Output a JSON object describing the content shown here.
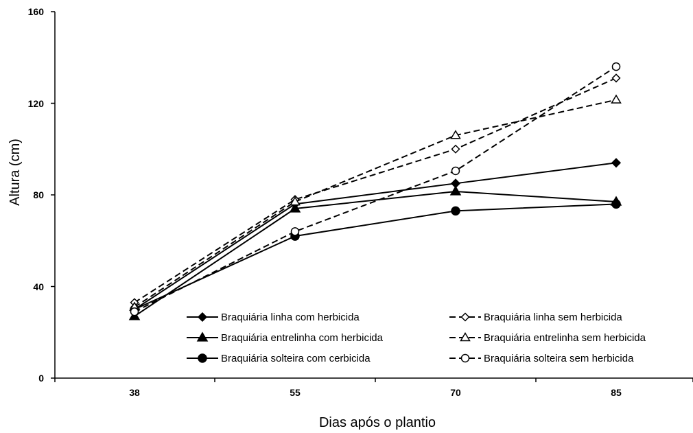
{
  "chart_data": {
    "type": "line",
    "xlabel": "Dias após o plantio",
    "ylabel": "Altura (cm)",
    "x": [
      38,
      55,
      70,
      85
    ],
    "ylim": [
      0,
      160
    ],
    "yticks": [
      0,
      40,
      80,
      120,
      160
    ],
    "grid": false,
    "legend_position": "bottom-right",
    "series": [
      {
        "name": "Braquiária linha com herbicida",
        "marker": "diamond",
        "filled": true,
        "dashed": false,
        "values": [
          30,
          76,
          85,
          94
        ]
      },
      {
        "name": "Braquiária entrelinha com herbicida",
        "marker": "triangle",
        "filled": true,
        "dashed": false,
        "values": [
          27,
          74,
          81.5,
          77
        ]
      },
      {
        "name": "Braquiária solteira com cerbicida",
        "marker": "circle",
        "filled": true,
        "dashed": false,
        "values": [
          30,
          62,
          73,
          76
        ]
      },
      {
        "name": "Braquiária linha sem herbicida",
        "marker": "diamond",
        "filled": false,
        "dashed": true,
        "values": [
          33,
          78,
          100,
          131
        ]
      },
      {
        "name": "Braquiária entrelinha sem herbicida",
        "marker": "triangle",
        "filled": false,
        "dashed": true,
        "values": [
          31,
          77,
          106,
          121.5
        ]
      },
      {
        "name": "Braquiária solteira sem herbicida",
        "marker": "circle",
        "filled": false,
        "dashed": true,
        "values": [
          29,
          64,
          90.5,
          136
        ]
      }
    ]
  }
}
